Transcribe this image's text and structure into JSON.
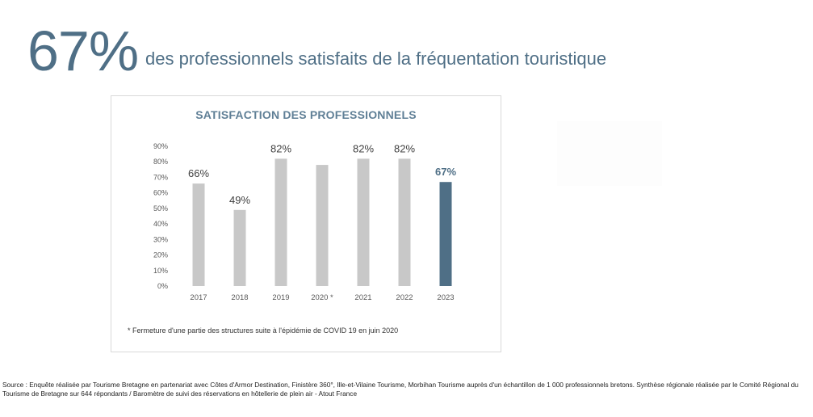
{
  "headline": {
    "big_number": "67%",
    "text": "des professionnels satisfaits de la fréquentation touristique"
  },
  "colors": {
    "accent": "#4f6f86",
    "bar_default": "#c8c8c8",
    "bar_highlight": "#4f6f86",
    "axis_text": "#595959"
  },
  "chart_data": {
    "type": "bar",
    "title": "SATISFACTION DES PROFESSIONNELS",
    "categories": [
      "2017",
      "2018",
      "2019",
      "2020 *",
      "2021",
      "2022",
      "2023"
    ],
    "values": [
      66,
      49,
      82,
      78,
      82,
      82,
      67
    ],
    "data_labels": [
      "66%",
      "49%",
      "82%",
      "",
      "82%",
      "82%",
      "67%"
    ],
    "highlight_index": 6,
    "y_ticks": [
      "0%",
      "10%",
      "20%",
      "30%",
      "40%",
      "50%",
      "60%",
      "70%",
      "80%",
      "90%"
    ],
    "ylim": [
      0,
      90
    ],
    "grid": false,
    "xlabel": "",
    "ylabel": ""
  },
  "footnote": "* Fermeture d'une partie des structures suite à l'épidémie de COVID 19 en juin 2020",
  "source": "Source : Enquête réalisée par Tourisme Bretagne en partenariat avec Côtes d'Armor Destination, Finistère 360°, Ille-et-Vilaine Tourisme, Morbihan Tourisme auprès d'un échantillon de 1 000 professionnels bretons. Synthèse régionale réalisée par le Comité Régional du Tourisme de Bretagne sur 644 répondants / Baromètre de suivi des réservations en hôtellerie de plein air - Atout France"
}
